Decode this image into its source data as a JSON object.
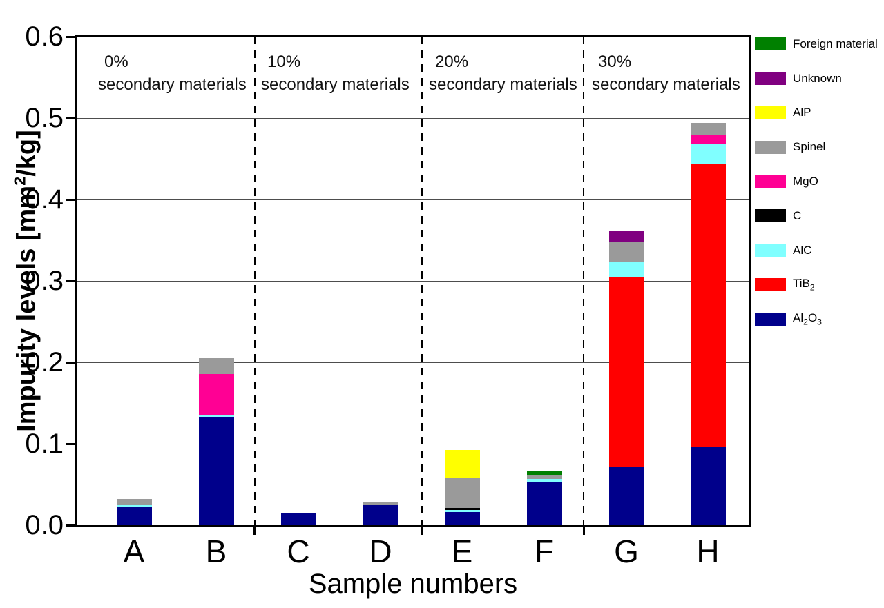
{
  "chart_data": {
    "type": "bar",
    "stacked": true,
    "xlabel": "Sample numbers",
    "ylabel_text": "Impurity levels [mm2/kg]",
    "ylabel_parts": [
      [
        "t",
        "Impurity levels [mm"
      ],
      [
        "sup",
        "2"
      ],
      [
        "t",
        "/kg]"
      ]
    ],
    "categories": [
      "A",
      "B",
      "C",
      "D",
      "E",
      "F",
      "G",
      "H"
    ],
    "ylim": [
      0,
      0.6
    ],
    "yticks": [
      "0.0",
      "0.1",
      "0.2",
      "0.3",
      "0.4",
      "0.5",
      "0.6"
    ],
    "grid": true,
    "legend_position": "right-outside",
    "units": "mm2/kg",
    "series": [
      {
        "name": "Al2O3",
        "label_parts": [
          [
            "t",
            "Al"
          ],
          [
            "sub",
            "2"
          ],
          [
            "t",
            "O"
          ],
          [
            "sub",
            "3"
          ]
        ],
        "color": "#00008B",
        "values": [
          0.022,
          0.133,
          0.015,
          0.025,
          0.016,
          0.053,
          0.071,
          0.097
        ]
      },
      {
        "name": "TiB2",
        "label_parts": [
          [
            "t",
            "TiB"
          ],
          [
            "sub",
            "2"
          ]
        ],
        "color": "#FF0000",
        "values": [
          0,
          0,
          0,
          0,
          0,
          0,
          0.234,
          0.347
        ]
      },
      {
        "name": "AlC",
        "label_parts": [
          [
            "t",
            "AlC"
          ]
        ],
        "color": "#80FFFF",
        "values": [
          0.003,
          0.003,
          0,
          0,
          0.003,
          0.004,
          0.018,
          0.025
        ]
      },
      {
        "name": "C",
        "label_parts": [
          [
            "t",
            "C"
          ]
        ],
        "color": "#000000",
        "values": [
          0,
          0,
          0,
          0,
          0.002,
          0,
          0,
          0
        ]
      },
      {
        "name": "MgO",
        "label_parts": [
          [
            "t",
            "MgO"
          ]
        ],
        "color": "#FF0094",
        "values": [
          0,
          0.05,
          0,
          0,
          0,
          0,
          0,
          0.011
        ]
      },
      {
        "name": "Spinel",
        "label_parts": [
          [
            "t",
            "Spinel"
          ]
        ],
        "color": "#9A9A9A",
        "values": [
          0.007,
          0.019,
          0,
          0.003,
          0.037,
          0.004,
          0.025,
          0.014
        ]
      },
      {
        "name": "AlP",
        "label_parts": [
          [
            "t",
            "AlP"
          ]
        ],
        "color": "#FFFF00",
        "values": [
          0,
          0,
          0,
          0,
          0.034,
          0,
          0,
          0
        ]
      },
      {
        "name": "Unknown",
        "label_parts": [
          [
            "t",
            "Unknown"
          ]
        ],
        "color": "#800080",
        "values": [
          0,
          0,
          0,
          0,
          0,
          0,
          0.014,
          0
        ]
      },
      {
        "name": "Foreign material",
        "label_parts": [
          [
            "t",
            "Foreign material"
          ]
        ],
        "color": "#008000",
        "values": [
          0,
          0,
          0,
          0,
          0,
          0.005,
          0,
          0
        ]
      }
    ],
    "bar_totals": {
      "A": 0.032,
      "B": 0.205,
      "C": 0.015,
      "D": 0.028,
      "E": 0.092,
      "F": 0.066,
      "G": 0.362,
      "H": 0.494
    },
    "annotations": [
      {
        "pct": "0%",
        "text": "secondary materials"
      },
      {
        "pct": "10%",
        "text": "secondary materials"
      },
      {
        "pct": "20%",
        "text": "secondary materials"
      },
      {
        "pct": "30%",
        "text": "secondary materials"
      }
    ]
  }
}
